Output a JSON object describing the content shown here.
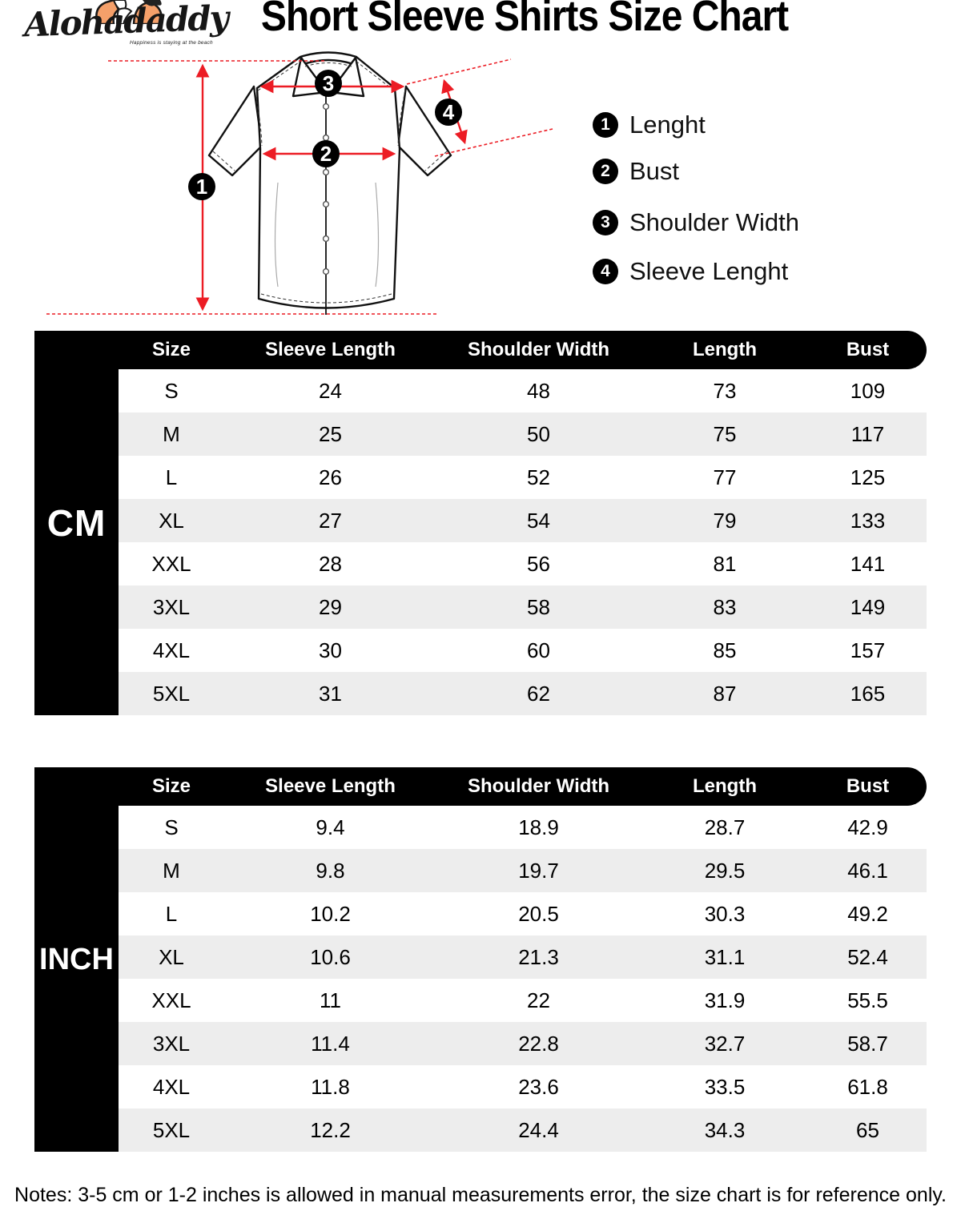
{
  "logo": {
    "brand": "Alohadaddy",
    "tagline": "Happiness is staying at the beach"
  },
  "title": "Short Sleeve Shirts Size Chart",
  "legend": {
    "items": [
      {
        "num": "1",
        "label": "Lenght"
      },
      {
        "num": "2",
        "label": "Bust"
      },
      {
        "num": "3",
        "label": "Shoulder Width"
      },
      {
        "num": "4",
        "label": "Sleeve Lenght"
      }
    ]
  },
  "diagram": {
    "badges": [
      "1",
      "2",
      "3",
      "4"
    ]
  },
  "tables": {
    "cm": {
      "unit_label": "CM",
      "headers": [
        "Size",
        "Sleeve Length",
        "Shoulder Width",
        "Length",
        "Bust"
      ],
      "rows": [
        [
          "S",
          "24",
          "48",
          "73",
          "109"
        ],
        [
          "M",
          "25",
          "50",
          "75",
          "117"
        ],
        [
          "L",
          "26",
          "52",
          "77",
          "125"
        ],
        [
          "XL",
          "27",
          "54",
          "79",
          "133"
        ],
        [
          "XXL",
          "28",
          "56",
          "81",
          "141"
        ],
        [
          "3XL",
          "29",
          "58",
          "83",
          "149"
        ],
        [
          "4XL",
          "30",
          "60",
          "85",
          "157"
        ],
        [
          "5XL",
          "31",
          "62",
          "87",
          "165"
        ]
      ]
    },
    "inch": {
      "unit_label": "INCH",
      "headers": [
        "Size",
        "Sleeve Length",
        "Shoulder Width",
        "Length",
        "Bust"
      ],
      "rows": [
        [
          "S",
          "9.4",
          "18.9",
          "28.7",
          "42.9"
        ],
        [
          "M",
          "9.8",
          "19.7",
          "29.5",
          "46.1"
        ],
        [
          "L",
          "10.2",
          "20.5",
          "30.3",
          "49.2"
        ],
        [
          "XL",
          "10.6",
          "21.3",
          "31.1",
          "52.4"
        ],
        [
          "XXL",
          "11",
          "22",
          "31.9",
          "55.5"
        ],
        [
          "3XL",
          "11.4",
          "22.8",
          "32.7",
          "58.7"
        ],
        [
          "4XL",
          "11.8",
          "23.6",
          "33.5",
          "61.8"
        ],
        [
          "5XL",
          "12.2",
          "24.4",
          "34.3",
          "65"
        ]
      ]
    }
  },
  "note": "Notes: 3-5 cm or 1-2 inches is allowed in manual measurements error, the size chart is for reference only.",
  "colors": {
    "accent_red": "#ec1c24",
    "row_alt": "#ededed",
    "table_black": "#000000"
  }
}
